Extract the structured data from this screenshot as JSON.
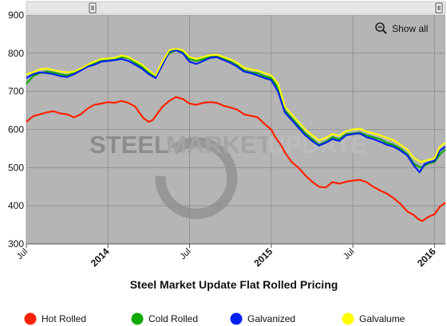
{
  "chart_data": {
    "type": "line",
    "title": "Steel Market Update Flat Rolled Pricing",
    "ylim": [
      300,
      900
    ],
    "yticks": [
      300,
      400,
      500,
      600,
      700,
      800,
      900
    ],
    "xlim": [
      0,
      30.8
    ],
    "xticks": [
      {
        "x": 0,
        "label": "Jul",
        "major": false
      },
      {
        "x": 6,
        "label": "2014",
        "major": true
      },
      {
        "x": 12,
        "label": "Jul",
        "major": false
      },
      {
        "x": 18,
        "label": "2015",
        "major": true
      },
      {
        "x": 24,
        "label": "Jul",
        "major": false
      },
      {
        "x": 30,
        "label": "2016",
        "major": true
      }
    ],
    "grid": true,
    "legend_position": "bottom",
    "series": [
      {
        "name": "Hot Rolled",
        "color": "#ff2200",
        "points": [
          [
            0,
            620
          ],
          [
            0.5,
            635
          ],
          [
            1,
            640
          ],
          [
            1.5,
            645
          ],
          [
            2,
            648
          ],
          [
            2.5,
            642
          ],
          [
            3,
            640
          ],
          [
            3.5,
            632
          ],
          [
            4,
            640
          ],
          [
            4.5,
            655
          ],
          [
            5,
            665
          ],
          [
            5.5,
            668
          ],
          [
            6,
            672
          ],
          [
            6.5,
            670
          ],
          [
            7,
            675
          ],
          [
            7.5,
            670
          ],
          [
            8,
            660
          ],
          [
            8.3,
            645
          ],
          [
            8.6,
            630
          ],
          [
            9,
            620
          ],
          [
            9.3,
            625
          ],
          [
            9.6,
            640
          ],
          [
            10,
            660
          ],
          [
            10.5,
            675
          ],
          [
            11,
            685
          ],
          [
            11.5,
            680
          ],
          [
            12,
            668
          ],
          [
            12.5,
            665
          ],
          [
            13,
            670
          ],
          [
            13.5,
            672
          ],
          [
            14,
            670
          ],
          [
            14.5,
            662
          ],
          [
            15,
            658
          ],
          [
            15.5,
            652
          ],
          [
            16,
            640
          ],
          [
            16.5,
            636
          ],
          [
            17,
            632
          ],
          [
            17.5,
            615
          ],
          [
            18,
            600
          ],
          [
            18.3,
            580
          ],
          [
            18.7,
            560
          ],
          [
            19,
            540
          ],
          [
            19.5,
            515
          ],
          [
            20,
            500
          ],
          [
            20.5,
            480
          ],
          [
            21,
            463
          ],
          [
            21.5,
            450
          ],
          [
            22,
            448
          ],
          [
            22.5,
            462
          ],
          [
            23,
            458
          ],
          [
            23.5,
            463
          ],
          [
            24,
            466
          ],
          [
            24.5,
            468
          ],
          [
            25,
            462
          ],
          [
            25.5,
            450
          ],
          [
            26,
            440
          ],
          [
            26.5,
            432
          ],
          [
            27,
            420
          ],
          [
            27.5,
            405
          ],
          [
            28,
            385
          ],
          [
            28.5,
            375
          ],
          [
            28.8,
            365
          ],
          [
            29.1,
            360
          ],
          [
            29.5,
            370
          ],
          [
            30,
            378
          ],
          [
            30.4,
            398
          ],
          [
            30.8,
            408
          ]
        ]
      },
      {
        "name": "Cold Rolled",
        "color": "#11aa00",
        "points": [
          [
            0,
            720
          ],
          [
            0.5,
            740
          ],
          [
            1,
            748
          ],
          [
            1.5,
            752
          ],
          [
            2,
            750
          ],
          [
            2.5,
            745
          ],
          [
            3,
            742
          ],
          [
            3.5,
            748
          ],
          [
            4,
            758
          ],
          [
            4.5,
            768
          ],
          [
            5,
            775
          ],
          [
            5.5,
            782
          ],
          [
            6,
            783
          ],
          [
            6.5,
            785
          ],
          [
            7,
            790
          ],
          [
            7.5,
            788
          ],
          [
            8,
            775
          ],
          [
            8.5,
            765
          ],
          [
            9,
            750
          ],
          [
            9.5,
            740
          ],
          [
            10,
            775
          ],
          [
            10.5,
            800
          ],
          [
            11,
            808
          ],
          [
            11.5,
            805
          ],
          [
            12,
            785
          ],
          [
            12.5,
            780
          ],
          [
            13,
            785
          ],
          [
            13.5,
            790
          ],
          [
            14,
            792
          ],
          [
            14.5,
            785
          ],
          [
            15,
            778
          ],
          [
            15.5,
            768
          ],
          [
            16,
            755
          ],
          [
            16.5,
            750
          ],
          [
            17,
            748
          ],
          [
            17.5,
            740
          ],
          [
            18,
            735
          ],
          [
            18.5,
            710
          ],
          [
            19,
            650
          ],
          [
            19.5,
            630
          ],
          [
            20,
            610
          ],
          [
            20.5,
            590
          ],
          [
            21,
            575
          ],
          [
            21.5,
            560
          ],
          [
            22,
            568
          ],
          [
            22.5,
            580
          ],
          [
            23,
            575
          ],
          [
            23.5,
            588
          ],
          [
            24,
            590
          ],
          [
            24.5,
            592
          ],
          [
            25,
            585
          ],
          [
            25.5,
            580
          ],
          [
            26,
            575
          ],
          [
            26.5,
            565
          ],
          [
            27,
            560
          ],
          [
            27.5,
            550
          ],
          [
            28,
            535
          ],
          [
            28.5,
            510
          ],
          [
            29,
            500
          ],
          [
            29.5,
            510
          ],
          [
            30,
            515
          ],
          [
            30.4,
            535
          ],
          [
            30.8,
            548
          ]
        ]
      },
      {
        "name": "Galvanized",
        "color": "#0022ee",
        "points": [
          [
            0,
            735
          ],
          [
            0.5,
            745
          ],
          [
            1,
            750
          ],
          [
            1.5,
            748
          ],
          [
            2,
            745
          ],
          [
            2.5,
            740
          ],
          [
            3,
            738
          ],
          [
            3.5,
            745
          ],
          [
            4,
            755
          ],
          [
            4.5,
            765
          ],
          [
            5,
            770
          ],
          [
            5.5,
            778
          ],
          [
            6,
            780
          ],
          [
            6.5,
            782
          ],
          [
            7,
            785
          ],
          [
            7.5,
            780
          ],
          [
            8,
            770
          ],
          [
            8.5,
            760
          ],
          [
            9,
            745
          ],
          [
            9.5,
            735
          ],
          [
            10,
            770
          ],
          [
            10.5,
            805
          ],
          [
            11,
            808
          ],
          [
            11.5,
            800
          ],
          [
            12,
            778
          ],
          [
            12.5,
            772
          ],
          [
            13,
            780
          ],
          [
            13.5,
            788
          ],
          [
            14,
            790
          ],
          [
            14.5,
            782
          ],
          [
            15,
            775
          ],
          [
            15.5,
            765
          ],
          [
            16,
            752
          ],
          [
            16.5,
            748
          ],
          [
            17,
            742
          ],
          [
            17.5,
            735
          ],
          [
            18,
            730
          ],
          [
            18.5,
            700
          ],
          [
            19,
            645
          ],
          [
            19.5,
            625
          ],
          [
            20,
            605
          ],
          [
            20.5,
            585
          ],
          [
            21,
            570
          ],
          [
            21.5,
            558
          ],
          [
            22,
            565
          ],
          [
            22.5,
            575
          ],
          [
            23,
            570
          ],
          [
            23.5,
            585
          ],
          [
            24,
            588
          ],
          [
            24.5,
            590
          ],
          [
            25,
            580
          ],
          [
            25.5,
            575
          ],
          [
            26,
            568
          ],
          [
            26.5,
            560
          ],
          [
            27,
            555
          ],
          [
            27.5,
            545
          ],
          [
            28,
            532
          ],
          [
            28.5,
            505
          ],
          [
            28.9,
            488
          ],
          [
            29.3,
            510
          ],
          [
            29.7,
            515
          ],
          [
            30,
            518
          ],
          [
            30.4,
            545
          ],
          [
            30.8,
            555
          ]
        ]
      },
      {
        "name": "Galvalume",
        "color": "#ffff00",
        "points": [
          [
            0,
            745
          ],
          [
            0.5,
            750
          ],
          [
            1,
            758
          ],
          [
            1.5,
            760
          ],
          [
            2,
            756
          ],
          [
            2.5,
            752
          ],
          [
            3,
            750
          ],
          [
            3.5,
            752
          ],
          [
            4,
            760
          ],
          [
            4.5,
            770
          ],
          [
            5,
            778
          ],
          [
            5.5,
            785
          ],
          [
            6,
            786
          ],
          [
            6.5,
            788
          ],
          [
            7,
            794
          ],
          [
            7.5,
            790
          ],
          [
            8,
            780
          ],
          [
            8.5,
            770
          ],
          [
            9,
            755
          ],
          [
            9.5,
            742
          ],
          [
            10,
            778
          ],
          [
            10.5,
            808
          ],
          [
            11,
            812
          ],
          [
            11.5,
            808
          ],
          [
            12,
            790
          ],
          [
            12.5,
            785
          ],
          [
            13,
            790
          ],
          [
            13.5,
            795
          ],
          [
            14,
            796
          ],
          [
            14.5,
            790
          ],
          [
            15,
            784
          ],
          [
            15.5,
            775
          ],
          [
            16,
            762
          ],
          [
            16.5,
            758
          ],
          [
            17,
            755
          ],
          [
            17.5,
            748
          ],
          [
            18,
            742
          ],
          [
            18.5,
            720
          ],
          [
            19,
            660
          ],
          [
            19.5,
            640
          ],
          [
            20,
            620
          ],
          [
            20.5,
            600
          ],
          [
            21,
            585
          ],
          [
            21.5,
            572
          ],
          [
            22,
            578
          ],
          [
            22.5,
            588
          ],
          [
            23,
            584
          ],
          [
            23.5,
            596
          ],
          [
            24,
            600
          ],
          [
            24.5,
            602
          ],
          [
            25,
            595
          ],
          [
            25.5,
            590
          ],
          [
            26,
            585
          ],
          [
            26.5,
            578
          ],
          [
            27,
            572
          ],
          [
            27.5,
            560
          ],
          [
            28,
            548
          ],
          [
            28.5,
            525
          ],
          [
            29,
            515
          ],
          [
            29.5,
            520
          ],
          [
            30,
            525
          ],
          [
            30.4,
            555
          ],
          [
            30.8,
            565
          ]
        ]
      }
    ]
  },
  "toolbar": {
    "show_all_label": "Show all",
    "zoom_icon": "magnifier-minus-icon"
  },
  "watermark": {
    "text_bold": "STEEL",
    "text_rest": "MARKET",
    "text_light": "UPDATE"
  }
}
